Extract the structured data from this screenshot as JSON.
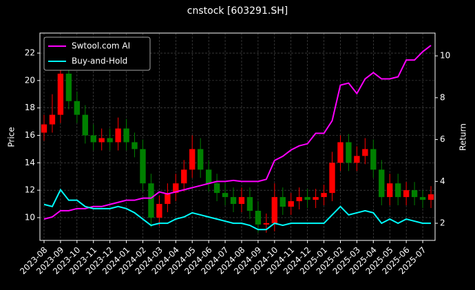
{
  "chart_data": {
    "type": "candlestick",
    "title": "cnstock [603291.SH]",
    "y_label": "Price",
    "y2_label": "Return",
    "categories": [
      "2023-08",
      null,
      "2023-09",
      null,
      "2023-10",
      null,
      "2023-11",
      null,
      "2023-12",
      null,
      "2024-01",
      null,
      "2024-02",
      null,
      "2024-03",
      null,
      "2024-04",
      null,
      "2024-05",
      null,
      "2024-06",
      null,
      "2024-07",
      null,
      "2024-08",
      null,
      "2024-09",
      null,
      "2024-10",
      null,
      "2024-11",
      null,
      "2024-12",
      null,
      "2025-01",
      null,
      "2025-02",
      null,
      "2025-03",
      null,
      "2025-04",
      null,
      "2025-05",
      null,
      "2025-06",
      null,
      "2025-07",
      null
    ],
    "open": [
      16.2,
      16.8,
      17.5,
      20.5,
      18.5,
      17.5,
      16.0,
      15.5,
      15.8,
      15.5,
      16.5,
      15.5,
      15.0,
      12.5,
      10.0,
      11.0,
      11.8,
      12.5,
      13.5,
      15.0,
      13.5,
      12.5,
      11.8,
      11.5,
      11.0,
      11.5,
      10.5,
      9.5,
      9.6,
      11.5,
      10.8,
      11.2,
      11.5,
      11.3,
      11.5,
      11.8,
      14.0,
      15.5,
      14.0,
      14.5,
      15.0,
      13.5,
      11.5,
      12.5,
      11.5,
      12.0,
      11.5,
      11.3
    ],
    "high": [
      17.5,
      19.0,
      23.0,
      21.2,
      19.2,
      18.2,
      16.8,
      16.5,
      16.5,
      17.3,
      17.2,
      16.2,
      15.7,
      13.2,
      11.6,
      12.5,
      13.2,
      14.2,
      16.0,
      15.8,
      14.2,
      13.2,
      12.5,
      12.2,
      12.2,
      12.2,
      11.2,
      10.3,
      12.5,
      12.2,
      11.8,
      12.2,
      12.1,
      12.1,
      12.4,
      14.8,
      16.0,
      16.1,
      15.2,
      15.8,
      15.7,
      14.2,
      13.2,
      13.2,
      12.6,
      12.6,
      12.0,
      12.3
    ],
    "low": [
      15.6,
      16.2,
      16.9,
      17.9,
      16.9,
      15.4,
      14.9,
      14.9,
      14.9,
      14.9,
      14.9,
      14.4,
      11.9,
      9.3,
      9.4,
      10.4,
      11.2,
      11.9,
      12.9,
      12.9,
      11.9,
      11.2,
      10.9,
      10.4,
      10.4,
      9.9,
      8.9,
      8.9,
      9.0,
      10.2,
      10.2,
      10.6,
      10.7,
      10.7,
      10.9,
      11.2,
      13.4,
      13.4,
      13.4,
      13.9,
      12.9,
      10.9,
      10.9,
      10.9,
      10.9,
      10.9,
      10.7,
      10.7
    ],
    "close": [
      16.8,
      17.5,
      20.5,
      18.5,
      17.5,
      16.0,
      15.5,
      15.8,
      15.5,
      16.5,
      15.5,
      15.0,
      12.5,
      10.0,
      11.0,
      11.8,
      12.5,
      13.5,
      15.0,
      13.5,
      12.5,
      11.8,
      11.5,
      11.0,
      11.5,
      10.5,
      9.5,
      9.6,
      11.5,
      10.8,
      11.2,
      11.5,
      11.3,
      11.5,
      11.8,
      14.0,
      15.5,
      14.0,
      14.5,
      15.0,
      13.5,
      11.5,
      12.5,
      11.5,
      12.0,
      11.5,
      11.3,
      11.7
    ],
    "up_color": "#ff0000",
    "down_color": "#008000",
    "series": [
      {
        "name": "Swtool.com AI",
        "color": "#ff00ff",
        "axis": "y2",
        "values": [
          2.2,
          2.3,
          2.6,
          2.6,
          2.7,
          2.7,
          2.8,
          2.8,
          2.9,
          3.0,
          3.1,
          3.1,
          3.2,
          3.2,
          3.5,
          3.4,
          3.5,
          3.6,
          3.7,
          3.8,
          3.9,
          4.0,
          4.0,
          4.05,
          4.0,
          4.0,
          4.0,
          4.1,
          5.0,
          5.2,
          5.5,
          5.7,
          5.8,
          6.3,
          6.3,
          6.9,
          8.6,
          8.7,
          8.2,
          8.9,
          9.2,
          8.9,
          8.9,
          9.0,
          9.8,
          9.8,
          10.2,
          10.5
        ]
      },
      {
        "name": "Buy-and-Hold",
        "color": "#00ffff",
        "axis": "y2",
        "values": [
          2.9,
          2.8,
          3.6,
          3.1,
          3.1,
          2.8,
          2.7,
          2.7,
          2.7,
          2.8,
          2.7,
          2.5,
          2.2,
          1.9,
          2.0,
          2.0,
          2.2,
          2.3,
          2.5,
          2.4,
          2.3,
          2.2,
          2.1,
          2.0,
          2.0,
          1.9,
          1.7,
          1.7,
          2.0,
          1.9,
          2.0,
          2.0,
          2.0,
          2.0,
          2.0,
          2.4,
          2.8,
          2.4,
          2.5,
          2.6,
          2.5,
          2.0,
          2.2,
          2.0,
          2.2,
          2.1,
          2.0,
          2.0
        ]
      }
    ],
    "ylim": [
      8.34,
      23.46
    ],
    "yticks": [
      10,
      12,
      14,
      16,
      18,
      20,
      22
    ],
    "y2lim": [
      1.18,
      11.09
    ],
    "y2ticks": [
      2,
      4,
      6,
      8,
      10
    ],
    "grid": true,
    "legend": "upper left"
  }
}
